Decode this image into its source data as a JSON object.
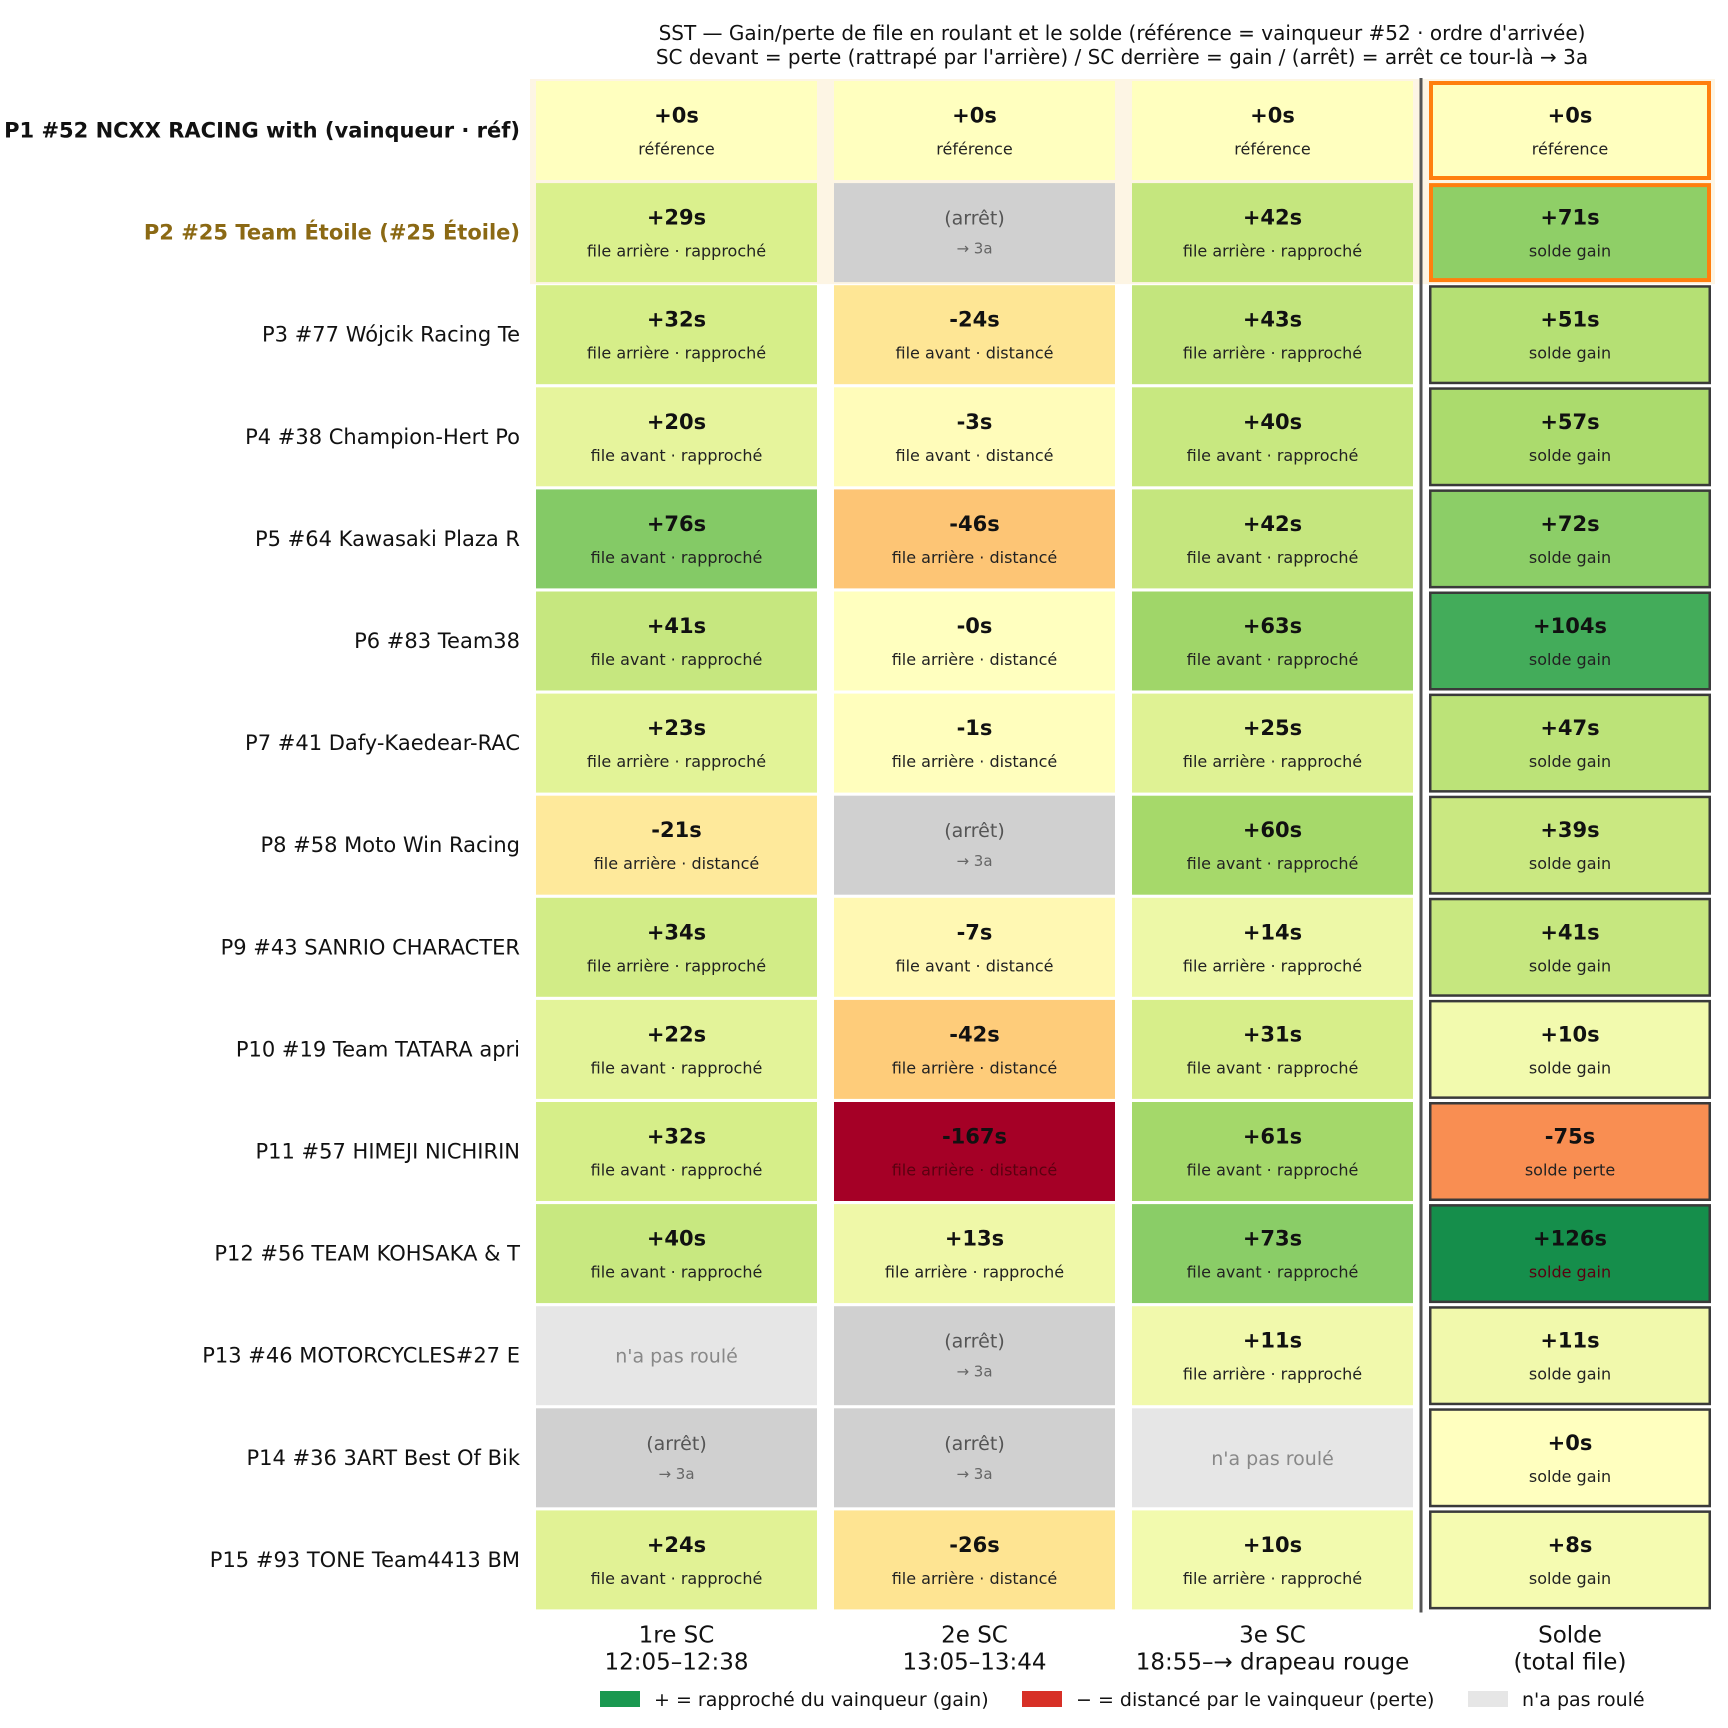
{
  "chart_data": {
    "type": "heatmap",
    "title_line1": "SST — Gain/perte de file en roulant et le solde (référence = vainqueur #52 · ordre d'arrivée)",
    "title_line2": "SC devant = perte (rattrapé par l'arrière) / SC derrière = gain / (arrêt) = arrêt ce tour-là → 3a",
    "columns": [
      {
        "line1": "1re SC",
        "line2": "12:05–12:38"
      },
      {
        "line1": "2e SC",
        "line2": "13:05–13:44"
      },
      {
        "line1": "3e SC",
        "line2": "18:55–→ drapeau rouge"
      },
      {
        "line1": "Solde",
        "line2": "(total file)"
      }
    ],
    "rows": [
      {
        "label": "P1 #52 NCXX RACING with (vainqueur · réf)",
        "style": "winner",
        "highlight": true,
        "cells": [
          {
            "kind": "value",
            "value": 0,
            "text": "+0s",
            "sub": "référence"
          },
          {
            "kind": "value",
            "value": 0,
            "text": "+0s",
            "sub": "référence"
          },
          {
            "kind": "value",
            "value": 0,
            "text": "+0s",
            "sub": "référence"
          },
          {
            "kind": "value",
            "value": 0,
            "text": "+0s",
            "sub": "référence"
          }
        ]
      },
      {
        "label": "P2 #25 Team Étoile (#25 Étoile)",
        "style": "focus",
        "highlight": true,
        "cells": [
          {
            "kind": "value",
            "value": 29,
            "text": "+29s",
            "sub": "file arrière · rapproché"
          },
          {
            "kind": "stop",
            "text": "(arrêt)",
            "sub": "→ 3a"
          },
          {
            "kind": "value",
            "value": 42,
            "text": "+42s",
            "sub": "file arrière · rapproché"
          },
          {
            "kind": "value",
            "value": 71,
            "text": "+71s",
            "sub": "solde gain"
          }
        ]
      },
      {
        "label": "P3 #77 Wójcik Racing Te",
        "style": "normal",
        "cells": [
          {
            "kind": "value",
            "value": 32,
            "text": "+32s",
            "sub": "file arrière · rapproché"
          },
          {
            "kind": "value",
            "value": -24,
            "text": "-24s",
            "sub": "file avant · distancé"
          },
          {
            "kind": "value",
            "value": 43,
            "text": "+43s",
            "sub": "file arrière · rapproché"
          },
          {
            "kind": "value",
            "value": 51,
            "text": "+51s",
            "sub": "solde gain"
          }
        ]
      },
      {
        "label": "P4 #38 Champion-Hert Po",
        "style": "normal",
        "cells": [
          {
            "kind": "value",
            "value": 20,
            "text": "+20s",
            "sub": "file avant · rapproché"
          },
          {
            "kind": "value",
            "value": -3,
            "text": "-3s",
            "sub": "file avant · distancé"
          },
          {
            "kind": "value",
            "value": 40,
            "text": "+40s",
            "sub": "file avant · rapproché"
          },
          {
            "kind": "value",
            "value": 57,
            "text": "+57s",
            "sub": "solde gain"
          }
        ]
      },
      {
        "label": "P5 #64 Kawasaki Plaza R",
        "style": "normal",
        "cells": [
          {
            "kind": "value",
            "value": 76,
            "text": "+76s",
            "sub": "file avant · rapproché"
          },
          {
            "kind": "value",
            "value": -46,
            "text": "-46s",
            "sub": "file arrière · distancé"
          },
          {
            "kind": "value",
            "value": 42,
            "text": "+42s",
            "sub": "file avant · rapproché"
          },
          {
            "kind": "value",
            "value": 72,
            "text": "+72s",
            "sub": "solde gain"
          }
        ]
      },
      {
        "label": "P6 #83 Team38",
        "style": "normal",
        "cells": [
          {
            "kind": "value",
            "value": 41,
            "text": "+41s",
            "sub": "file avant · rapproché"
          },
          {
            "kind": "value",
            "value": 0,
            "text": "-0s",
            "sub": "file arrière · distancé"
          },
          {
            "kind": "value",
            "value": 63,
            "text": "+63s",
            "sub": "file avant · rapproché"
          },
          {
            "kind": "value",
            "value": 104,
            "text": "+104s",
            "sub": "solde gain"
          }
        ]
      },
      {
        "label": "P7 #41 Dafy-Kaedear-RAC",
        "style": "normal",
        "cells": [
          {
            "kind": "value",
            "value": 23,
            "text": "+23s",
            "sub": "file arrière · rapproché"
          },
          {
            "kind": "value",
            "value": -1,
            "text": "-1s",
            "sub": "file arrière · distancé"
          },
          {
            "kind": "value",
            "value": 25,
            "text": "+25s",
            "sub": "file arrière · rapproché"
          },
          {
            "kind": "value",
            "value": 47,
            "text": "+47s",
            "sub": "solde gain"
          }
        ]
      },
      {
        "label": "P8 #58 Moto Win Racing",
        "style": "normal",
        "cells": [
          {
            "kind": "value",
            "value": -21,
            "text": "-21s",
            "sub": "file arrière · distancé"
          },
          {
            "kind": "stop",
            "text": "(arrêt)",
            "sub": "→ 3a"
          },
          {
            "kind": "value",
            "value": 60,
            "text": "+60s",
            "sub": "file avant · rapproché"
          },
          {
            "kind": "value",
            "value": 39,
            "text": "+39s",
            "sub": "solde gain"
          }
        ]
      },
      {
        "label": "P9 #43 SANRIO CHARACTER",
        "style": "normal",
        "cells": [
          {
            "kind": "value",
            "value": 34,
            "text": "+34s",
            "sub": "file arrière · rapproché"
          },
          {
            "kind": "value",
            "value": -7,
            "text": "-7s",
            "sub": "file avant · distancé"
          },
          {
            "kind": "value",
            "value": 14,
            "text": "+14s",
            "sub": "file arrière · rapproché"
          },
          {
            "kind": "value",
            "value": 41,
            "text": "+41s",
            "sub": "solde gain"
          }
        ]
      },
      {
        "label": "P10 #19 Team TATARA apri",
        "style": "normal",
        "cells": [
          {
            "kind": "value",
            "value": 22,
            "text": "+22s",
            "sub": "file avant · rapproché"
          },
          {
            "kind": "value",
            "value": -42,
            "text": "-42s",
            "sub": "file arrière · distancé"
          },
          {
            "kind": "value",
            "value": 31,
            "text": "+31s",
            "sub": "file avant · rapproché"
          },
          {
            "kind": "value",
            "value": 10,
            "text": "+10s",
            "sub": "solde gain"
          }
        ]
      },
      {
        "label": "P11 #57 HIMEJI NICHIRIN ",
        "style": "normal",
        "cells": [
          {
            "kind": "value",
            "value": 32,
            "text": "+32s",
            "sub": "file avant · rapproché"
          },
          {
            "kind": "value",
            "value": -167,
            "text": "-167s",
            "sub": "file arrière · distancé"
          },
          {
            "kind": "value",
            "value": 61,
            "text": "+61s",
            "sub": "file avant · rapproché"
          },
          {
            "kind": "value",
            "value": -75,
            "text": "-75s",
            "sub": "solde perte"
          }
        ]
      },
      {
        "label": "P12 #56 TEAM KOHSAKA & T",
        "style": "normal",
        "cells": [
          {
            "kind": "value",
            "value": 40,
            "text": "+40s",
            "sub": "file avant · rapproché"
          },
          {
            "kind": "value",
            "value": 13,
            "text": "+13s",
            "sub": "file arrière · rapproché"
          },
          {
            "kind": "value",
            "value": 73,
            "text": "+73s",
            "sub": "file avant · rapproché"
          },
          {
            "kind": "value",
            "value": 126,
            "text": "+126s",
            "sub": "solde gain"
          }
        ]
      },
      {
        "label": "P13 #46 MOTORCYCLES#27 E",
        "style": "normal",
        "cells": [
          {
            "kind": "none",
            "text": "n'a pas roulé"
          },
          {
            "kind": "stop",
            "text": "(arrêt)",
            "sub": "→ 3a"
          },
          {
            "kind": "value",
            "value": 11,
            "text": "+11s",
            "sub": "file arrière · rapproché"
          },
          {
            "kind": "value",
            "value": 11,
            "text": "+11s",
            "sub": "solde gain"
          }
        ]
      },
      {
        "label": "P14 #36 3ART Best Of Bik",
        "style": "normal",
        "cells": [
          {
            "kind": "stop",
            "text": "(arrêt)",
            "sub": "→ 3a"
          },
          {
            "kind": "stop",
            "text": "(arrêt)",
            "sub": "→ 3a"
          },
          {
            "kind": "none",
            "text": "n'a pas roulé"
          },
          {
            "kind": "value",
            "value": 0,
            "text": "+0s",
            "sub": "solde gain"
          }
        ]
      },
      {
        "label": "P15 #93 TONE Team4413 BM",
        "style": "normal",
        "cells": [
          {
            "kind": "value",
            "value": 24,
            "text": "+24s",
            "sub": "file avant · rapproché"
          },
          {
            "kind": "value",
            "value": -26,
            "text": "-26s",
            "sub": "file arrière · distancé"
          },
          {
            "kind": "value",
            "value": 10,
            "text": "+10s",
            "sub": "file arrière · rapproché"
          },
          {
            "kind": "value",
            "value": 8,
            "text": "+8s",
            "sub": "solde gain"
          }
        ]
      }
    ],
    "legend": [
      {
        "color": "#1a9850",
        "label": "+ = rapproché du vainqueur (gain)"
      },
      {
        "color": "#d73027",
        "label": "− = distancé par le vainqueur (perte)"
      },
      {
        "color": "#e6e6e6",
        "label": "n'a pas roulé"
      }
    ],
    "colors": {
      "stop": "#d0d0d0",
      "none": "#e6e6e6",
      "highlight_border": "#ff7f0e",
      "highlight_band": "#fdf5e4",
      "focus_label": "#8b6914",
      "solde_border": "#3a3a3a",
      "separator": "#555555"
    },
    "color_scale": {
      "min": -150,
      "max": 150,
      "colormap": "RdYlGn"
    }
  }
}
